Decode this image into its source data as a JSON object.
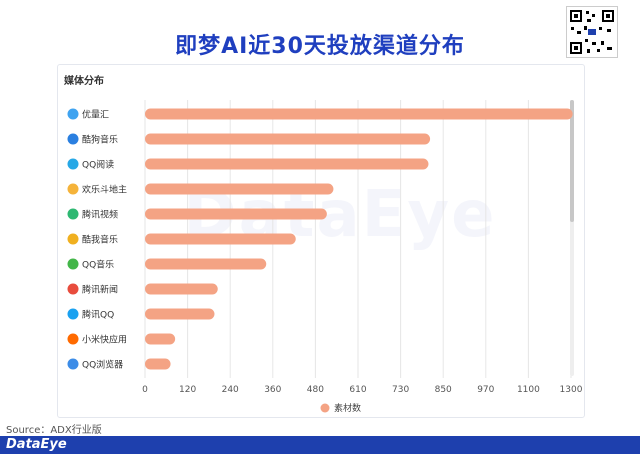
{
  "header": {
    "title": "即梦AI近30天投放渠道分布"
  },
  "card": {
    "title": "媒体分布"
  },
  "source": "Source：ADX行业版",
  "brand": "DataEye",
  "chart_data": {
    "type": "bar",
    "orientation": "horizontal",
    "categories": [
      "优量汇",
      "酷狗音乐",
      "QQ阅读",
      "欢乐斗地主",
      "腾讯视频",
      "酷我音乐",
      "QQ音乐",
      "腾讯新闻",
      "腾讯QQ",
      "小米快应用",
      "QQ浏览器"
    ],
    "series": [
      {
        "name": "素材数",
        "values": [
          1305,
          870,
          865,
          575,
          555,
          460,
          370,
          222,
          212,
          92,
          78
        ]
      }
    ],
    "xticks": [
      "0",
      "120",
      "240",
      "360",
      "480",
      "610",
      "730",
      "850",
      "970",
      "1100",
      "1300"
    ],
    "xlim": [
      0,
      1300
    ],
    "grid": true,
    "legend": "bottom-center",
    "colors": {
      "bar": "#f4a384",
      "grid": "#e6e6e6",
      "icon_palette": [
        "#3fa3f0",
        "#2a7fe0",
        "#27a8e6",
        "#f5b33a",
        "#2eb872",
        "#f0b020",
        "#43b649",
        "#e84c3d",
        "#1aa1f0",
        "#ff6a00",
        "#3c8ce7"
      ]
    },
    "icons": [
      "youlianghui-icon",
      "kugou-music-icon",
      "qq-reader-icon",
      "doudizhu-icon",
      "tencent-video-icon",
      "kuwo-music-icon",
      "qq-music-icon",
      "tencent-news-icon",
      "tencent-qq-icon",
      "xiaomi-quickapp-icon",
      "qq-browser-icon"
    ]
  }
}
